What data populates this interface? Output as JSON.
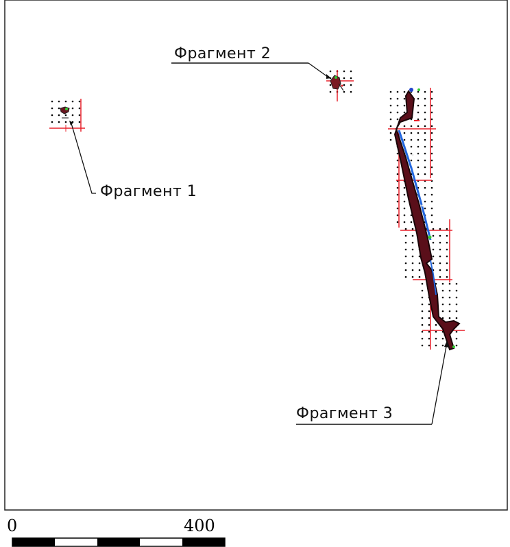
{
  "map": {
    "fragments": [
      {
        "id": 1,
        "label": "Фрагмент 1"
      },
      {
        "id": 2,
        "label": "Фрагмент 2"
      },
      {
        "id": 3,
        "label": "Фрагмент 3"
      }
    ]
  },
  "scale_bar": {
    "start_label": "0",
    "end_label": "400",
    "segment_count": 5
  },
  "colors": {
    "frame": "#222222",
    "grid_lines": "#e8202a",
    "grid_dots": "#000000",
    "track": "#2a0a10",
    "track_accent": "#2266dd",
    "highlight_green": "#33cc33"
  }
}
